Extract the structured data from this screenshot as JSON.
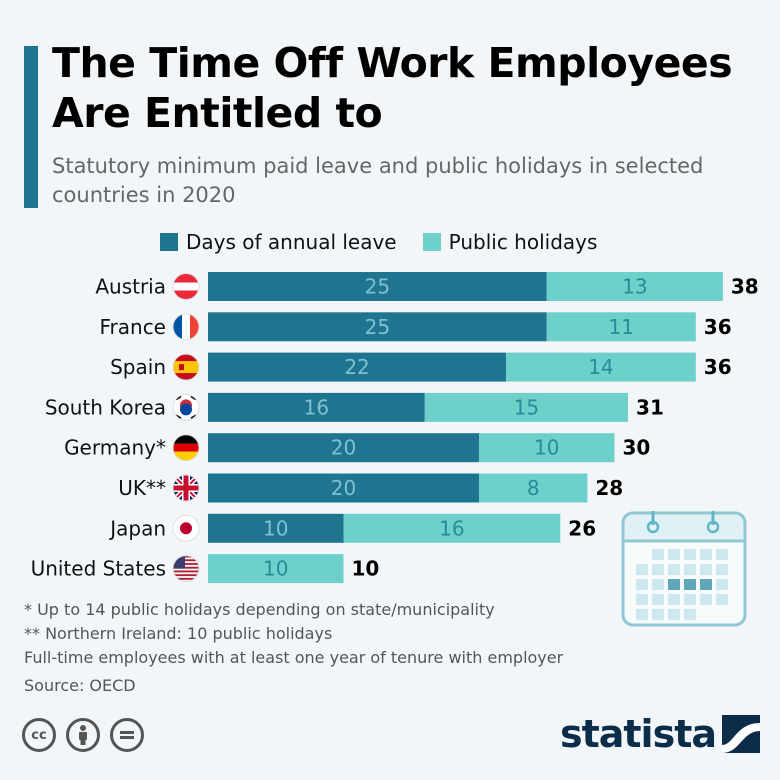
{
  "header": {
    "title": "The Time Off Work Employees Are Entitled to",
    "subtitle": "Statutory minimum paid leave and public holidays in selected countries in 2020"
  },
  "legend": {
    "annual_leave": "Days of annual leave",
    "public_holidays": "Public holidays"
  },
  "colors": {
    "annual_leave": "#1f7590",
    "public_holidays": "#6dd0cb",
    "accent": "#1f7590",
    "brand": "#0b2d4a"
  },
  "chart_data": {
    "type": "bar",
    "orientation": "horizontal",
    "stacked": true,
    "categories": [
      "Austria",
      "France",
      "Spain",
      "South Korea",
      "Germany*",
      "UK**",
      "Japan",
      "United States"
    ],
    "series": [
      {
        "name": "Days of annual leave",
        "values": [
          25,
          25,
          22,
          16,
          20,
          20,
          10,
          0
        ]
      },
      {
        "name": "Public holidays",
        "values": [
          13,
          11,
          14,
          15,
          10,
          8,
          16,
          10
        ]
      }
    ],
    "totals": [
      38,
      36,
      36,
      31,
      30,
      28,
      26,
      10
    ],
    "flag_icons": [
      "austria-flag-icon",
      "france-flag-icon",
      "spain-flag-icon",
      "south-korea-flag-icon",
      "germany-flag-icon",
      "uk-flag-icon",
      "japan-flag-icon",
      "usa-flag-icon"
    ],
    "grid": false
  },
  "notes": {
    "note1": "*   Up to 14 public holidays depending on state/municipality",
    "note2": "** Northern Ireland: 10 public holidays",
    "note3": "Full-time employees with at least one year of tenure with employer",
    "source": "Source: OECD"
  },
  "footer": {
    "license_icons": [
      "creative-commons-icon",
      "attribution-icon",
      "no-derivatives-icon"
    ],
    "brand": "statista"
  }
}
